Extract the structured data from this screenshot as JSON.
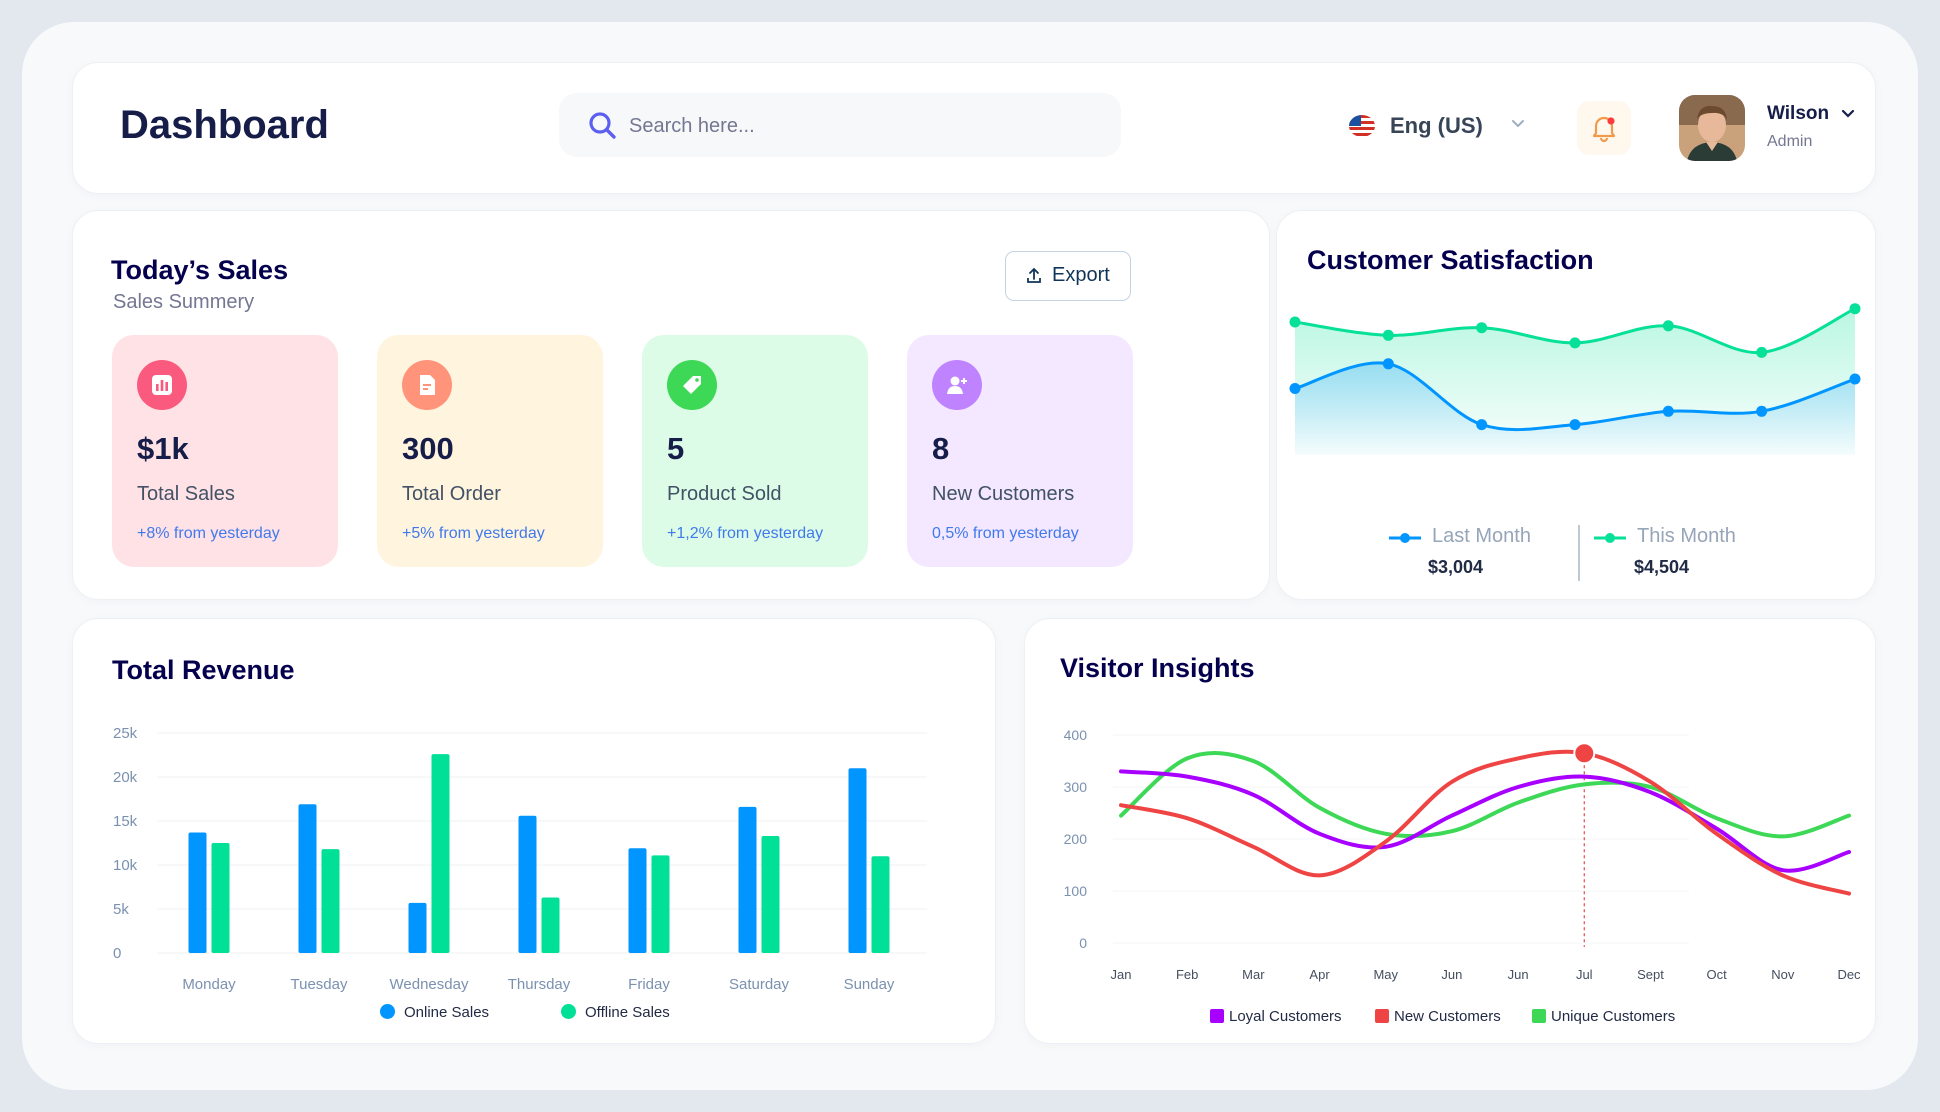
{
  "header": {
    "title": "Dashboard",
    "search_placeholder": "Search here...",
    "language": "Eng (US)",
    "user": {
      "name": "Wilson",
      "role": "Admin"
    }
  },
  "sales": {
    "title": "Today’s Sales",
    "subtitle": "Sales Summery",
    "export_label": "Export",
    "cards": [
      {
        "value": "$1k",
        "label": "Total Sales",
        "change": "+8% from yesterday",
        "bg": "#ffe2e5",
        "icon_bg": "#fa5a7d",
        "icon": "bar-chart-icon"
      },
      {
        "value": "300",
        "label": "Total Order",
        "change": "+5% from yesterday",
        "bg": "#fff4de",
        "icon_bg": "#ff947a",
        "icon": "document-icon"
      },
      {
        "value": "5",
        "label": "Product Sold",
        "change": "+1,2% from yesterday",
        "bg": "#dcfce7",
        "icon_bg": "#3cd856",
        "icon": "tag-icon"
      },
      {
        "value": "8",
        "label": "New Customers",
        "change": "0,5% from yesterday",
        "bg": "#f3e8ff",
        "icon_bg": "#bf83ff",
        "icon": "add-user-icon"
      }
    ]
  },
  "satisfaction": {
    "title": "Customer Satisfaction",
    "legend": [
      {
        "label": "Last Month",
        "value": "$3,004",
        "color": "#0095ff"
      },
      {
        "label": "This Month",
        "value": "$4,504",
        "color": "#07e098"
      }
    ]
  },
  "revenue": {
    "title": "Total Revenue",
    "legend": [
      {
        "label": "Online Sales",
        "color": "#0095ff"
      },
      {
        "label": "Offline Sales",
        "color": "#00e096"
      }
    ]
  },
  "visitors": {
    "title": "Visitor Insights",
    "legend": [
      {
        "label": "Loyal Customers",
        "color": "#a700ff"
      },
      {
        "label": "New Customers",
        "color": "#ef4444"
      },
      {
        "label": "Unique Customers",
        "color": "#3cd856"
      }
    ]
  },
  "chart_data": [
    {
      "type": "area",
      "title": "Customer Satisfaction",
      "x": [
        1,
        2,
        3,
        4,
        5,
        6,
        7
      ],
      "ylim": [
        0,
        10
      ],
      "grid": false,
      "series": [
        {
          "name": "Last Month",
          "values": [
            3.5,
            4.8,
            1.6,
            1.6,
            2.3,
            2.3,
            4.0
          ]
        },
        {
          "name": "This Month",
          "values": [
            7.0,
            6.3,
            6.7,
            5.9,
            6.8,
            5.4,
            7.7
          ]
        }
      ]
    },
    {
      "type": "bar",
      "title": "Total Revenue",
      "categories": [
        "Monday",
        "Tuesday",
        "Wednesday",
        "Thursday",
        "Friday",
        "Saturday",
        "Sunday"
      ],
      "yticks": [
        "0",
        "5k",
        "10k",
        "15k",
        "20k",
        "25k"
      ],
      "ylim": [
        0,
        25000
      ],
      "grid": true,
      "legend": "bottom",
      "series": [
        {
          "name": "Online Sales",
          "values": [
            13700,
            16900,
            5700,
            15600,
            11900,
            16600,
            21000
          ]
        },
        {
          "name": "Offline Sales",
          "values": [
            12500,
            11800,
            22600,
            6300,
            11100,
            13300,
            11000
          ]
        }
      ]
    },
    {
      "type": "line",
      "title": "Visitor Insights",
      "categories": [
        "Jan",
        "Feb",
        "Mar",
        "Apr",
        "May",
        "Jun",
        "Jun",
        "Jul",
        "Sept",
        "Oct",
        "Nov",
        "Dec"
      ],
      "yticks": [
        "0",
        "100",
        "200",
        "300",
        "400"
      ],
      "ylim": [
        0,
        400
      ],
      "legend": "bottom",
      "highlight": {
        "category": "Jul",
        "value": 365
      },
      "series": [
        {
          "name": "Loyal Customers",
          "values": [
            330,
            320,
            285,
            210,
            185,
            245,
            300,
            320,
            290,
            220,
            140,
            175
          ]
        },
        {
          "name": "New Customers",
          "values": [
            265,
            240,
            185,
            130,
            195,
            310,
            355,
            365,
            310,
            210,
            130,
            95
          ]
        },
        {
          "name": "Unique Customers",
          "values": [
            245,
            355,
            350,
            260,
            210,
            215,
            270,
            305,
            300,
            240,
            205,
            245
          ]
        }
      ]
    }
  ]
}
